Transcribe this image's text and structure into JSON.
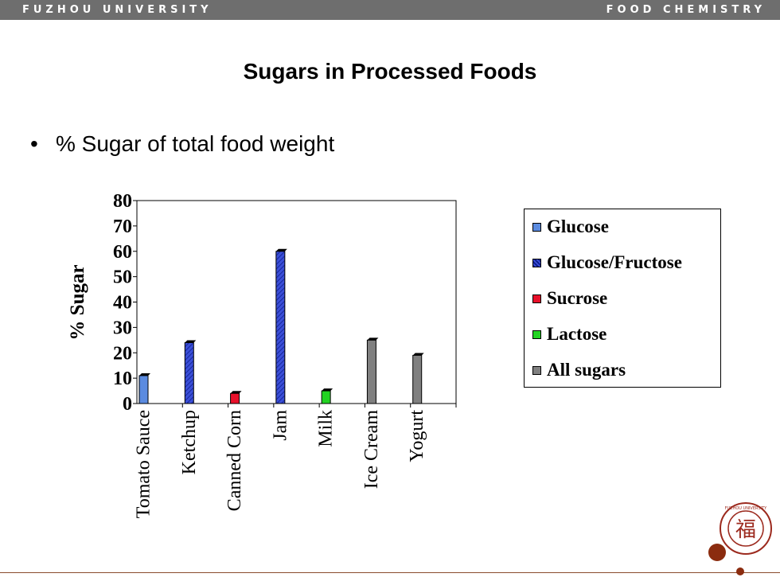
{
  "header": {
    "left": "FUZHOU UNIVERSITY",
    "right": "FOOD CHEMISTRY"
  },
  "slide": {
    "title": "Sugars in Processed Foods",
    "bullet": "% Sugar of total food weight"
  },
  "chart_data": {
    "type": "bar",
    "ylabel": "% Sugar",
    "ylim": [
      0,
      80
    ],
    "yticks": [
      "0",
      "10",
      "20",
      "30",
      "40",
      "50",
      "60",
      "70",
      "80"
    ],
    "categories": [
      "Tomato Sauce",
      "Ketchup",
      "Canned Corn",
      "Jam",
      "Milk",
      "Ice Cream",
      "Yogurt"
    ],
    "series": [
      {
        "name": "Glucose",
        "color": "#5b8be0",
        "values": [
          11,
          null,
          null,
          null,
          null,
          null,
          null
        ]
      },
      {
        "name": "Glucose/Fructose",
        "color": "#3b4fd8",
        "pattern": "hatched",
        "values": [
          null,
          24,
          null,
          60,
          null,
          null,
          null
        ]
      },
      {
        "name": "Sucrose",
        "color": "#e8102a",
        "values": [
          null,
          null,
          4,
          null,
          null,
          null,
          null
        ]
      },
      {
        "name": "Lactose",
        "color": "#22d322",
        "values": [
          null,
          null,
          null,
          null,
          5,
          null,
          null
        ]
      },
      {
        "name": "All sugars",
        "color": "#808080",
        "values": [
          null,
          null,
          null,
          null,
          null,
          25,
          19
        ]
      }
    ],
    "legend_position": "right",
    "grid": false
  },
  "logo": {
    "text": "FUZHOU UNIVERSITY",
    "glyph": "福"
  }
}
